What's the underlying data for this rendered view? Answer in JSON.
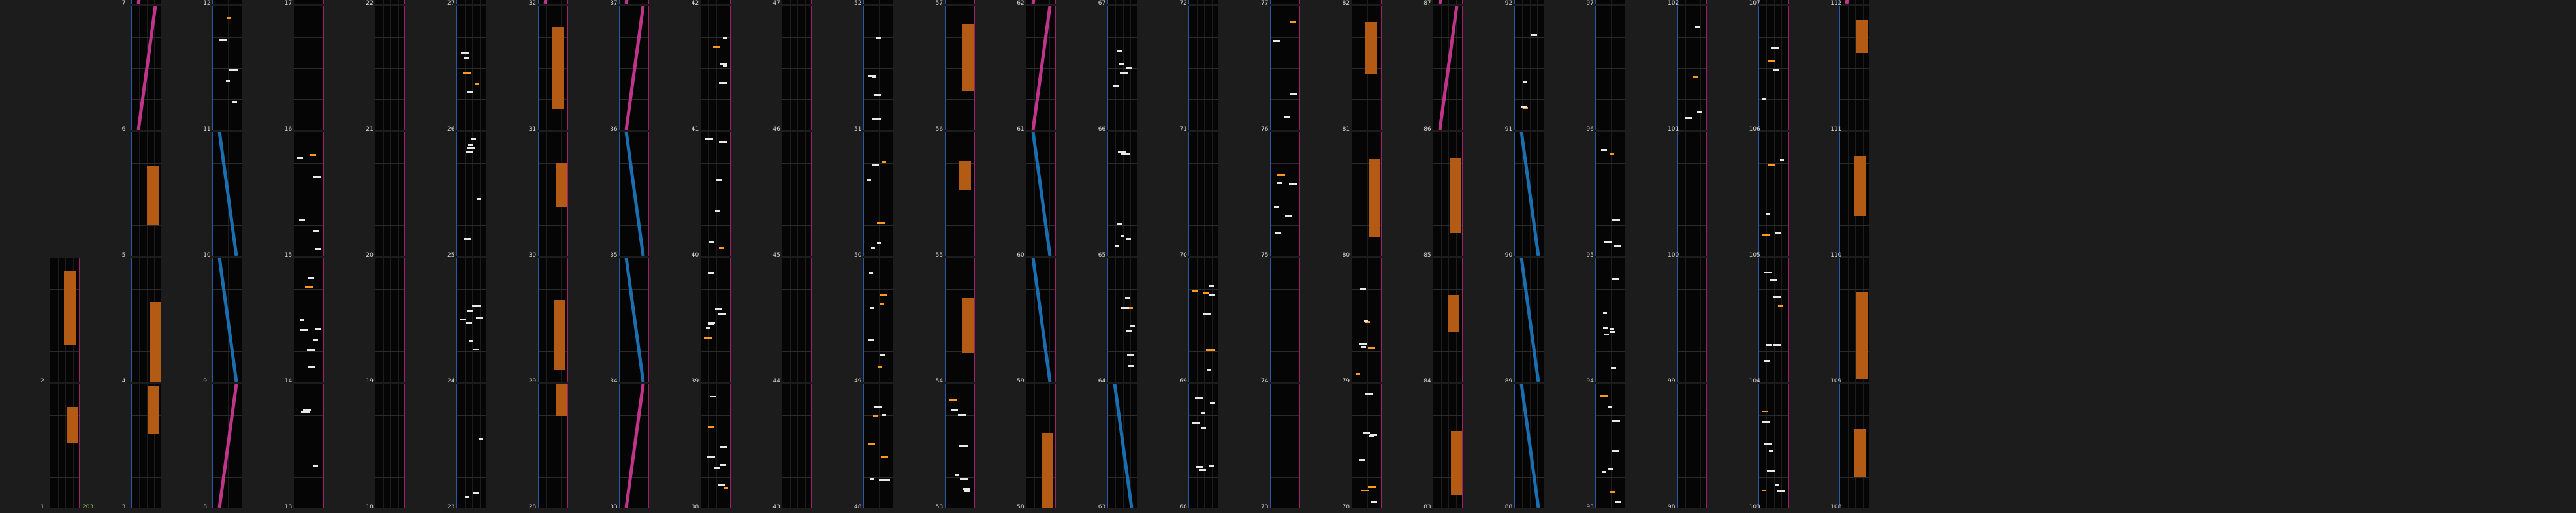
{
  "chart": {
    "extra_label": "203",
    "measures": [
      {
        "n": "1"
      },
      {
        "n": "2"
      },
      {
        "n": "3"
      },
      {
        "n": "4"
      },
      {
        "n": "5"
      },
      {
        "n": "6"
      },
      {
        "n": "7"
      },
      {
        "n": "8"
      },
      {
        "n": "9"
      },
      {
        "n": "10"
      },
      {
        "n": "11"
      },
      {
        "n": "12"
      },
      {
        "n": "13"
      },
      {
        "n": "14"
      },
      {
        "n": "15"
      },
      {
        "n": "16"
      },
      {
        "n": "17"
      },
      {
        "n": "18"
      },
      {
        "n": "19"
      },
      {
        "n": "20"
      },
      {
        "n": "21"
      },
      {
        "n": "22"
      },
      {
        "n": "23"
      },
      {
        "n": "24"
      },
      {
        "n": "25"
      },
      {
        "n": "26"
      },
      {
        "n": "27"
      },
      {
        "n": "28"
      },
      {
        "n": "29"
      },
      {
        "n": "30"
      },
      {
        "n": "31"
      },
      {
        "n": "32"
      },
      {
        "n": "33"
      },
      {
        "n": "34"
      },
      {
        "n": "35"
      },
      {
        "n": "36"
      },
      {
        "n": "37"
      },
      {
        "n": "38"
      },
      {
        "n": "39"
      },
      {
        "n": "40"
      },
      {
        "n": "41"
      },
      {
        "n": "42"
      },
      {
        "n": "43"
      },
      {
        "n": "44"
      },
      {
        "n": "45"
      },
      {
        "n": "46"
      },
      {
        "n": "47"
      },
      {
        "n": "48"
      },
      {
        "n": "49"
      },
      {
        "n": "50"
      },
      {
        "n": "51"
      },
      {
        "n": "52"
      },
      {
        "n": "53"
      },
      {
        "n": "54"
      },
      {
        "n": "55"
      },
      {
        "n": "56"
      },
      {
        "n": "57"
      },
      {
        "n": "58"
      },
      {
        "n": "59"
      },
      {
        "n": "60"
      },
      {
        "n": "61"
      },
      {
        "n": "62"
      },
      {
        "n": "63"
      },
      {
        "n": "64"
      },
      {
        "n": "65"
      },
      {
        "n": "66"
      },
      {
        "n": "67"
      },
      {
        "n": "68"
      },
      {
        "n": "69"
      },
      {
        "n": "70"
      },
      {
        "n": "71"
      },
      {
        "n": "72"
      },
      {
        "n": "73"
      },
      {
        "n": "74"
      },
      {
        "n": "75"
      },
      {
        "n": "76"
      },
      {
        "n": "77"
      },
      {
        "n": "78"
      },
      {
        "n": "79"
      },
      {
        "n": "80"
      },
      {
        "n": "81"
      },
      {
        "n": "82"
      },
      {
        "n": "83"
      },
      {
        "n": "84"
      },
      {
        "n": "85"
      },
      {
        "n": "86"
      },
      {
        "n": "87"
      },
      {
        "n": "88"
      },
      {
        "n": "89"
      },
      {
        "n": "90"
      },
      {
        "n": "91"
      },
      {
        "n": "92"
      },
      {
        "n": "93"
      },
      {
        "n": "94"
      },
      {
        "n": "95"
      },
      {
        "n": "96"
      },
      {
        "n": "97"
      },
      {
        "n": "98"
      },
      {
        "n": "99"
      },
      {
        "n": "100"
      },
      {
        "n": "101"
      },
      {
        "n": "102"
      },
      {
        "n": "103"
      },
      {
        "n": "104"
      },
      {
        "n": "105"
      },
      {
        "n": "106"
      },
      {
        "n": "107"
      },
      {
        "n": "108"
      },
      {
        "n": "109"
      },
      {
        "n": "110"
      },
      {
        "n": "111"
      },
      {
        "n": "112"
      }
    ]
  },
  "colors": {
    "background": "#1c1c1c",
    "lane": "#050505",
    "left_border": "#2b57a8",
    "right_border": "#a0206a",
    "tap": "#e8e8e8",
    "tap_orange": "#ff9a1e",
    "hold": "#b35a14",
    "slide_left": "#1a6fb0",
    "slide_right": "#c0358a",
    "extra_label": "#9be04b"
  }
}
